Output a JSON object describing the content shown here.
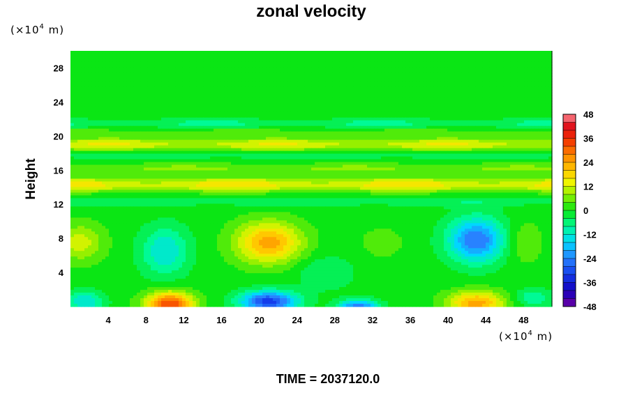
{
  "chart_data": {
    "type": "heatmap",
    "title": "zonal velocity",
    "xlabel": "",
    "ylabel": "Height",
    "x_unit": {
      "pre": "(×10",
      "exp": "4",
      "post": " m)"
    },
    "y_unit": {
      "pre": "(×10",
      "exp": "4",
      "post": " m)"
    },
    "xlim": [
      0,
      51
    ],
    "ylim": [
      0,
      30
    ],
    "x_ticks": [
      4,
      8,
      12,
      16,
      20,
      24,
      28,
      32,
      36,
      40,
      44,
      48
    ],
    "y_ticks": [
      4,
      8,
      12,
      16,
      20,
      24,
      28
    ],
    "grid": false,
    "colorbar": {
      "placement": "right",
      "range": [
        -48,
        48
      ],
      "step": 4,
      "labels": [
        48,
        36,
        24,
        12,
        0,
        -12,
        -24,
        -36,
        -48
      ]
    },
    "background_value": 0,
    "bands": [
      {
        "y": 21.5,
        "sigma": 0.5,
        "value": -6
      },
      {
        "y": 20.4,
        "sigma": 0.4,
        "value": 4
      },
      {
        "y": 19.0,
        "sigma": 0.75,
        "value": 12
      },
      {
        "y": 17.8,
        "sigma": 0.6,
        "value": -4
      },
      {
        "y": 16.2,
        "sigma": 0.6,
        "value": 6
      },
      {
        "y": 14.3,
        "sigma": 0.8,
        "value": 14
      },
      {
        "y": 12.3,
        "sigma": 0.6,
        "value": -4
      }
    ],
    "features": [
      {
        "x": 21.0,
        "y": 7.5,
        "sx": 3.5,
        "sy": 2.4,
        "value": 24
      },
      {
        "x": 43.0,
        "y": 7.8,
        "sx": 3.0,
        "sy": 2.6,
        "value": -26
      },
      {
        "x": 10.0,
        "y": 6.5,
        "sx": 2.5,
        "sy": 2.8,
        "value": -14
      },
      {
        "x": 1.0,
        "y": 7.5,
        "sx": 2.5,
        "sy": 2.2,
        "value": 12
      },
      {
        "x": 33.0,
        "y": 7.5,
        "sx": 2.5,
        "sy": 2.0,
        "value": 4
      },
      {
        "x": 10.5,
        "y": 0.3,
        "sx": 2.5,
        "sy": 1.4,
        "value": 34
      },
      {
        "x": 21.0,
        "y": 0.6,
        "sx": 3.0,
        "sy": 1.2,
        "value": -32
      },
      {
        "x": 30.5,
        "y": 0.0,
        "sx": 2.0,
        "sy": 0.8,
        "value": -26
      },
      {
        "x": 43.0,
        "y": 0.4,
        "sx": 3.0,
        "sy": 1.4,
        "value": 24
      },
      {
        "x": 1.5,
        "y": 0.6,
        "sx": 2.0,
        "sy": 1.2,
        "value": -14
      },
      {
        "x": 49.0,
        "y": 1.0,
        "sx": 2.0,
        "sy": 1.0,
        "value": -10
      },
      {
        "x": 48.0,
        "y": 7.5,
        "sx": 2.0,
        "sy": 2.5,
        "value": 6
      },
      {
        "x": 27.0,
        "y": 4.0,
        "sx": 3.0,
        "sy": 2.0,
        "value": -6
      }
    ]
  },
  "footer": {
    "time_label": "TIME = 2037120.0"
  }
}
